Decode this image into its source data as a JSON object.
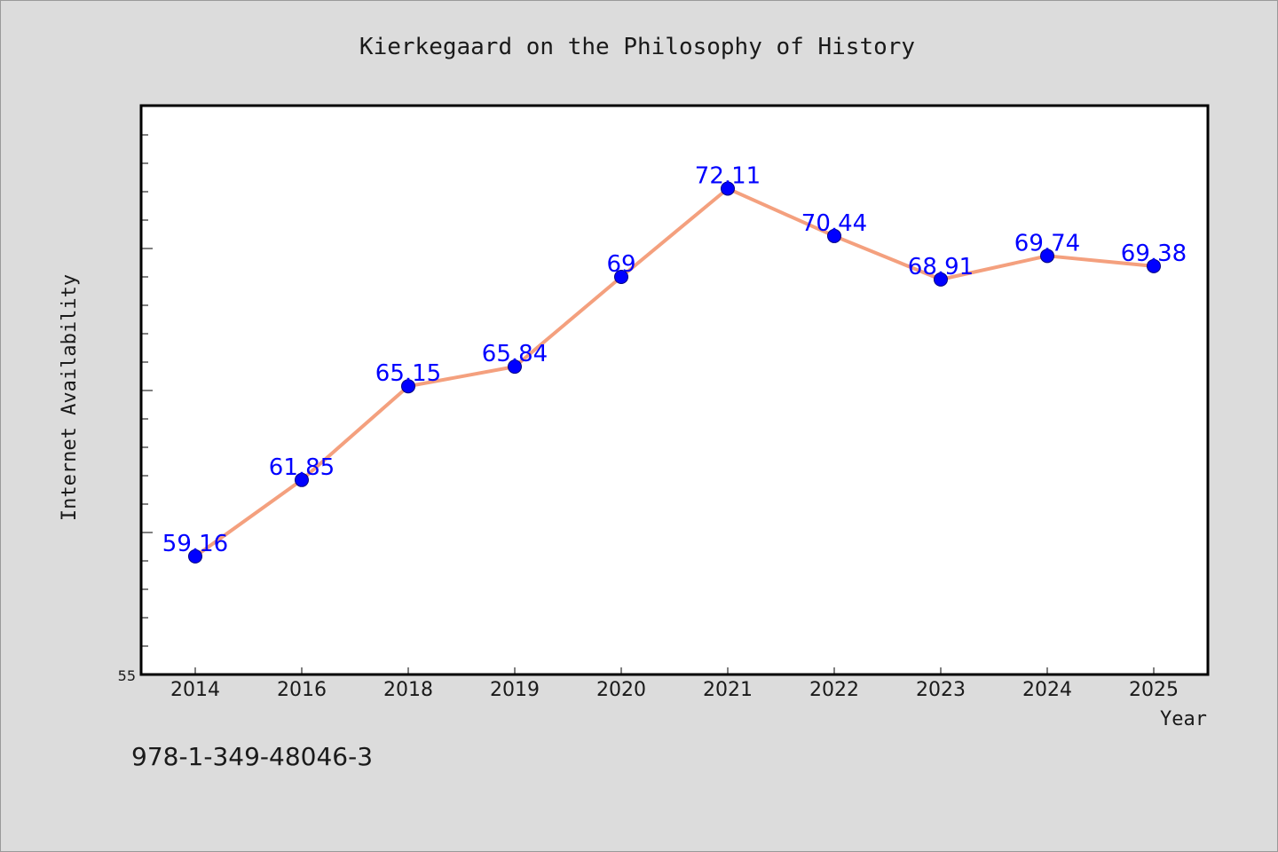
{
  "chart_data": {
    "type": "line",
    "title": "Kierkegaard on the Philosophy of History",
    "xlabel": "Year",
    "ylabel": "Internet Availability",
    "categories": [
      "2014",
      "2016",
      "2018",
      "2019",
      "2020",
      "2021",
      "2022",
      "2023",
      "2024",
      "2025"
    ],
    "values": [
      59.16,
      61.85,
      65.15,
      65.84,
      69,
      72.11,
      70.44,
      68.91,
      69.74,
      69.38
    ],
    "value_labels": [
      "59.16",
      "61.85",
      "65.15",
      "65.84",
      "69",
      "72.11",
      "70.44",
      "68.91",
      "69.74",
      "69.38"
    ],
    "ylim": [
      55,
      75
    ],
    "y_tick_labels_shown": [
      "55"
    ],
    "grid": false,
    "colors": {
      "line": "#f4a07e",
      "marker": "#0000ff",
      "value_label": "#0000ff",
      "plot_background": "#ffffff",
      "figure_background": "#dcdcdc"
    }
  },
  "footer": {
    "isbn": "978-1-349-48046-3"
  }
}
